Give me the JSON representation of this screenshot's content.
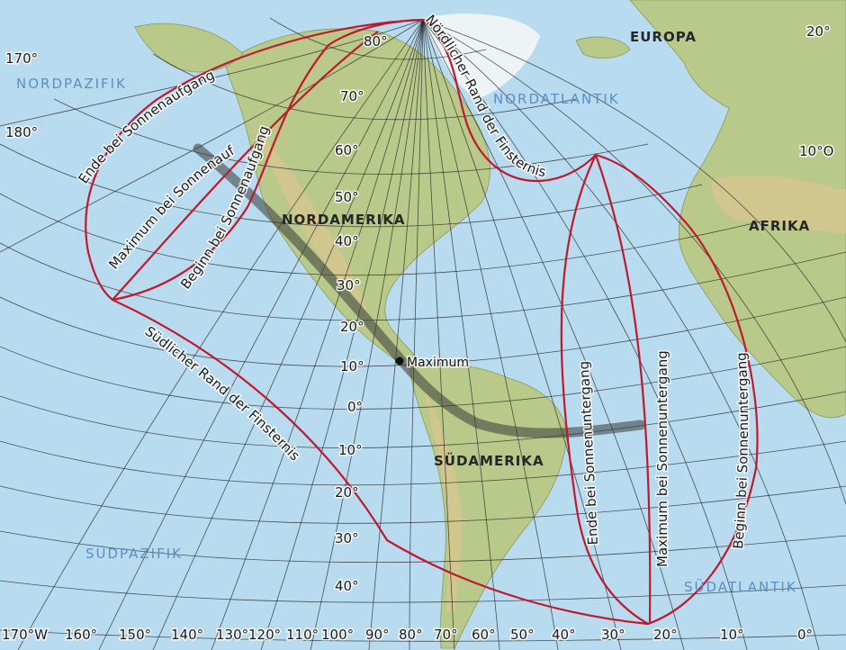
{
  "oceans": {
    "north_pacific": "NORDPAZIFIK",
    "north_atlantic": "NORDATLANTIK",
    "south_pacific": "SÜDPAZIFIK",
    "south_atlantic": "SÜDATLANTIK"
  },
  "continents": {
    "north_america": "NORDAMERIKA",
    "south_america": "SÜDAMERIKA",
    "europe": "EUROPA",
    "africa": "AFRIKA"
  },
  "latitude_labels": [
    "80°",
    "70°",
    "60°",
    "50°",
    "40°",
    "30°",
    "20°",
    "10°",
    "0°",
    "10°",
    "20°",
    "30°",
    "40°"
  ],
  "longitude_labels": [
    "170°W",
    "160°",
    "150°",
    "140°",
    "130°",
    "120°",
    "110°",
    "100°",
    "90°",
    "80°",
    "70°",
    "60°",
    "50°",
    "40°",
    "30°",
    "20°",
    "10°",
    "0°"
  ],
  "edge_labels": {
    "lon_170_top": "170°",
    "lon_180": "180°",
    "lon_20_top": "20°",
    "lon_10_east": "10°O"
  },
  "eclipse_labels": {
    "north_limit": "Nördlicher Rand der Finsternis",
    "south_limit": "Südlicher Rand der Finsternis",
    "end_at_sunrise": "Ende bei Sonnenaufgang",
    "max_at_sunrise": "Maximum bei Sonnenaufgang",
    "begin_at_sunrise": "Beginn bei Sonnenaufgang",
    "end_at_sunset": "Ende bei Sonnenuntergang",
    "max_at_sunset": "Maximum bei Sonnenuntergang",
    "begin_at_sunset": "Beginn bei Sonnenuntergang",
    "maximum_point": "Maximum"
  },
  "colors": {
    "ocean": "#b9dbef",
    "land": "#b9c98a",
    "eclipse_boundary": "#c0182d",
    "central_line": "#3a3a3a",
    "graticule": "#222222"
  }
}
